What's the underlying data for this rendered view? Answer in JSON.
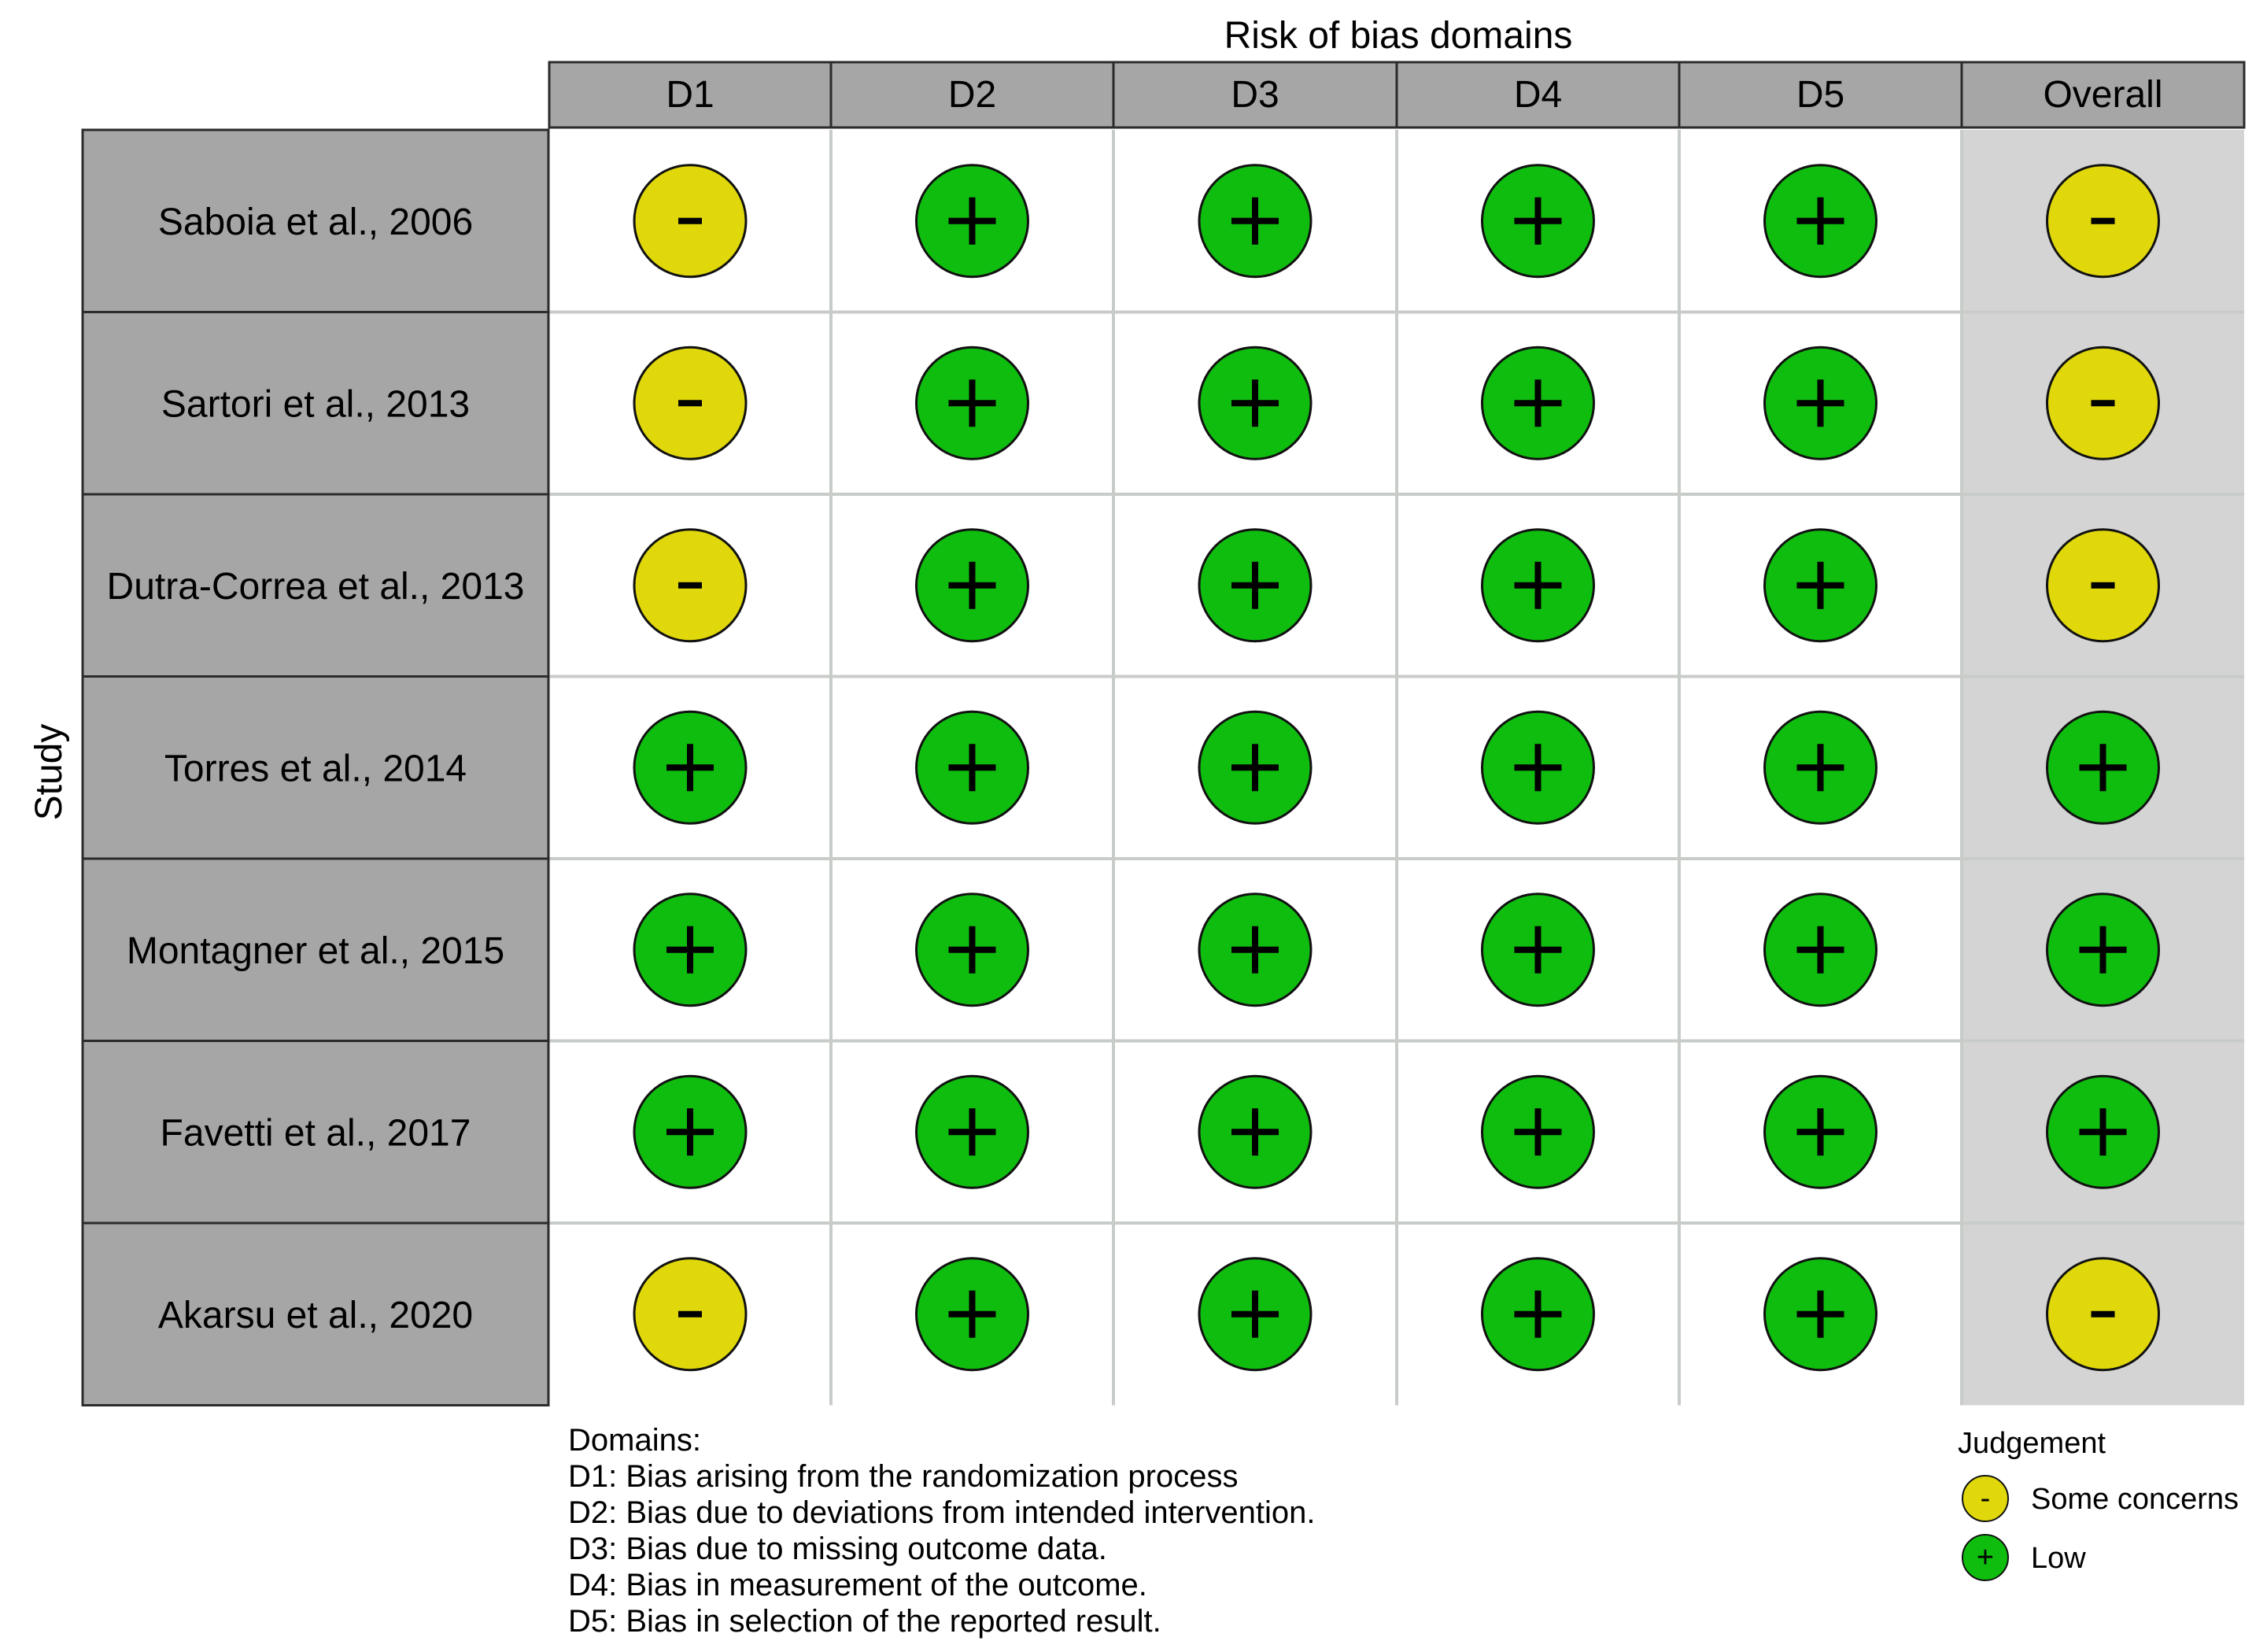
{
  "chart_data": {
    "type": "table",
    "title": "Risk of bias domains",
    "ylabel": "Study",
    "columns": [
      "D1",
      "D2",
      "D3",
      "D4",
      "D5",
      "Overall"
    ],
    "rows": [
      {
        "study": "Saboia et al., 2006",
        "judgements": [
          "some",
          "low",
          "low",
          "low",
          "low",
          "some"
        ]
      },
      {
        "study": "Sartori et al., 2013",
        "judgements": [
          "some",
          "low",
          "low",
          "low",
          "low",
          "some"
        ]
      },
      {
        "study": "Dutra-Correa et al., 2013",
        "judgements": [
          "some",
          "low",
          "low",
          "low",
          "low",
          "some"
        ]
      },
      {
        "study": "Torres et al., 2014",
        "judgements": [
          "low",
          "low",
          "low",
          "low",
          "low",
          "low"
        ]
      },
      {
        "study": "Montagner et al., 2015",
        "judgements": [
          "low",
          "low",
          "low",
          "low",
          "low",
          "low"
        ]
      },
      {
        "study": "Favetti et al., 2017",
        "judgements": [
          "low",
          "low",
          "low",
          "low",
          "low",
          "low"
        ]
      },
      {
        "study": "Akarsu et al., 2020",
        "judgements": [
          "some",
          "low",
          "low",
          "low",
          "low",
          "some"
        ]
      }
    ],
    "symbols": {
      "some": "-",
      "low": "+"
    },
    "colors": {
      "some": "#e0d80a",
      "low": "#0fbd0f",
      "header_bg": "#a6a6a6",
      "study_bg": "#a6a6a6",
      "overall_bg": "#d4d4d4",
      "grid": "#c8ccc8"
    },
    "domains_title": "Domains:",
    "domains": [
      "D1: Bias arising from the randomization process",
      "D2: Bias due to deviations from intended intervention.",
      "D3: Bias due to missing outcome data.",
      "D4: Bias in measurement of the outcome.",
      "D5: Bias in selection of the reported result."
    ],
    "legend": {
      "title": "Judgement",
      "items": [
        {
          "key": "some",
          "label": "Some concerns"
        },
        {
          "key": "low",
          "label": "Low"
        }
      ]
    }
  }
}
